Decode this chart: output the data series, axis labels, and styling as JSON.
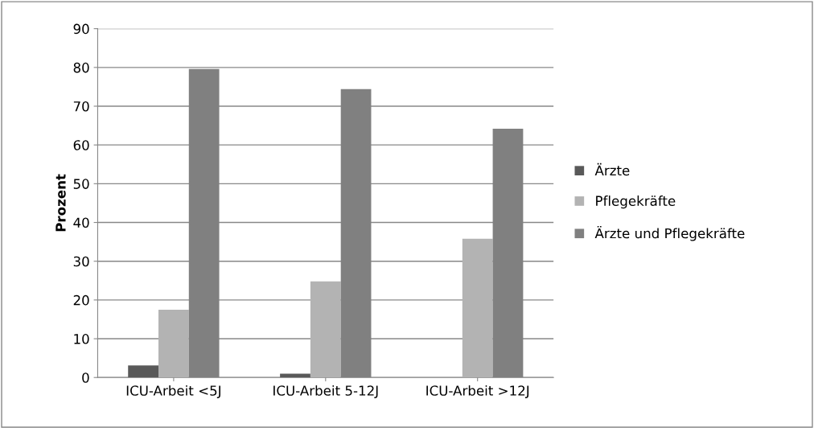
{
  "chart_data": {
    "type": "bar",
    "ylabel": "Prozent",
    "categories": [
      "ICU-Arbeit <5J",
      "ICU-Arbeit 5-12J",
      "ICU-Arbeit >12J"
    ],
    "series": [
      {
        "name": "Ärzte",
        "color": "#595959",
        "values": [
          3.1,
          1.0,
          0
        ]
      },
      {
        "name": "Pflegekräfte",
        "color": "#b3b3b3",
        "values": [
          17.5,
          24.8,
          35.8
        ]
      },
      {
        "name": "Ärzte und Pflegekräfte",
        "color": "#808080",
        "values": [
          79.6,
          74.4,
          64.2
        ]
      }
    ],
    "ylim": [
      0,
      90
    ],
    "yticks": [
      0,
      10,
      20,
      30,
      40,
      50,
      60,
      70,
      80,
      90
    ],
    "grid": "y",
    "legend": "right"
  }
}
